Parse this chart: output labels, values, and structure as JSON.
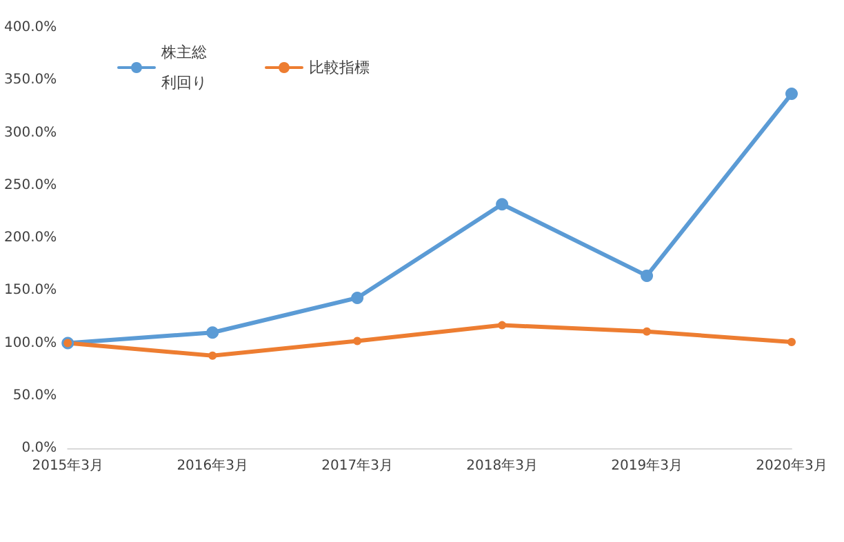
{
  "chart_data": {
    "type": "line",
    "categories": [
      "2015年3月",
      "2016年3月",
      "2017年3月",
      "2018年3月",
      "2019年3月",
      "2020年3月"
    ],
    "series": [
      {
        "name": "株主総利回り",
        "color": "#5b9bd5",
        "values": [
          100,
          110,
          143,
          232,
          164,
          337
        ]
      },
      {
        "name": "比較指標",
        "color": "#ed7d31",
        "values": [
          100,
          88,
          102,
          117,
          111,
          101
        ]
      }
    ],
    "ylim": [
      0,
      400
    ],
    "yticks": [
      {
        "value": 0,
        "label": "0.0%"
      },
      {
        "value": 50,
        "label": "50.0%"
      },
      {
        "value": 100,
        "label": "100.0%"
      },
      {
        "value": 150,
        "label": "150.0%"
      },
      {
        "value": 200,
        "label": "200.0%"
      },
      {
        "value": 250,
        "label": "250.0%"
      },
      {
        "value": 300,
        "label": "300.0%"
      },
      {
        "value": 350,
        "label": "350.0%"
      },
      {
        "value": 400,
        "label": "400.0%"
      }
    ],
    "grid": false,
    "legend": "top left",
    "marker": "circle",
    "line_style": "solid"
  }
}
